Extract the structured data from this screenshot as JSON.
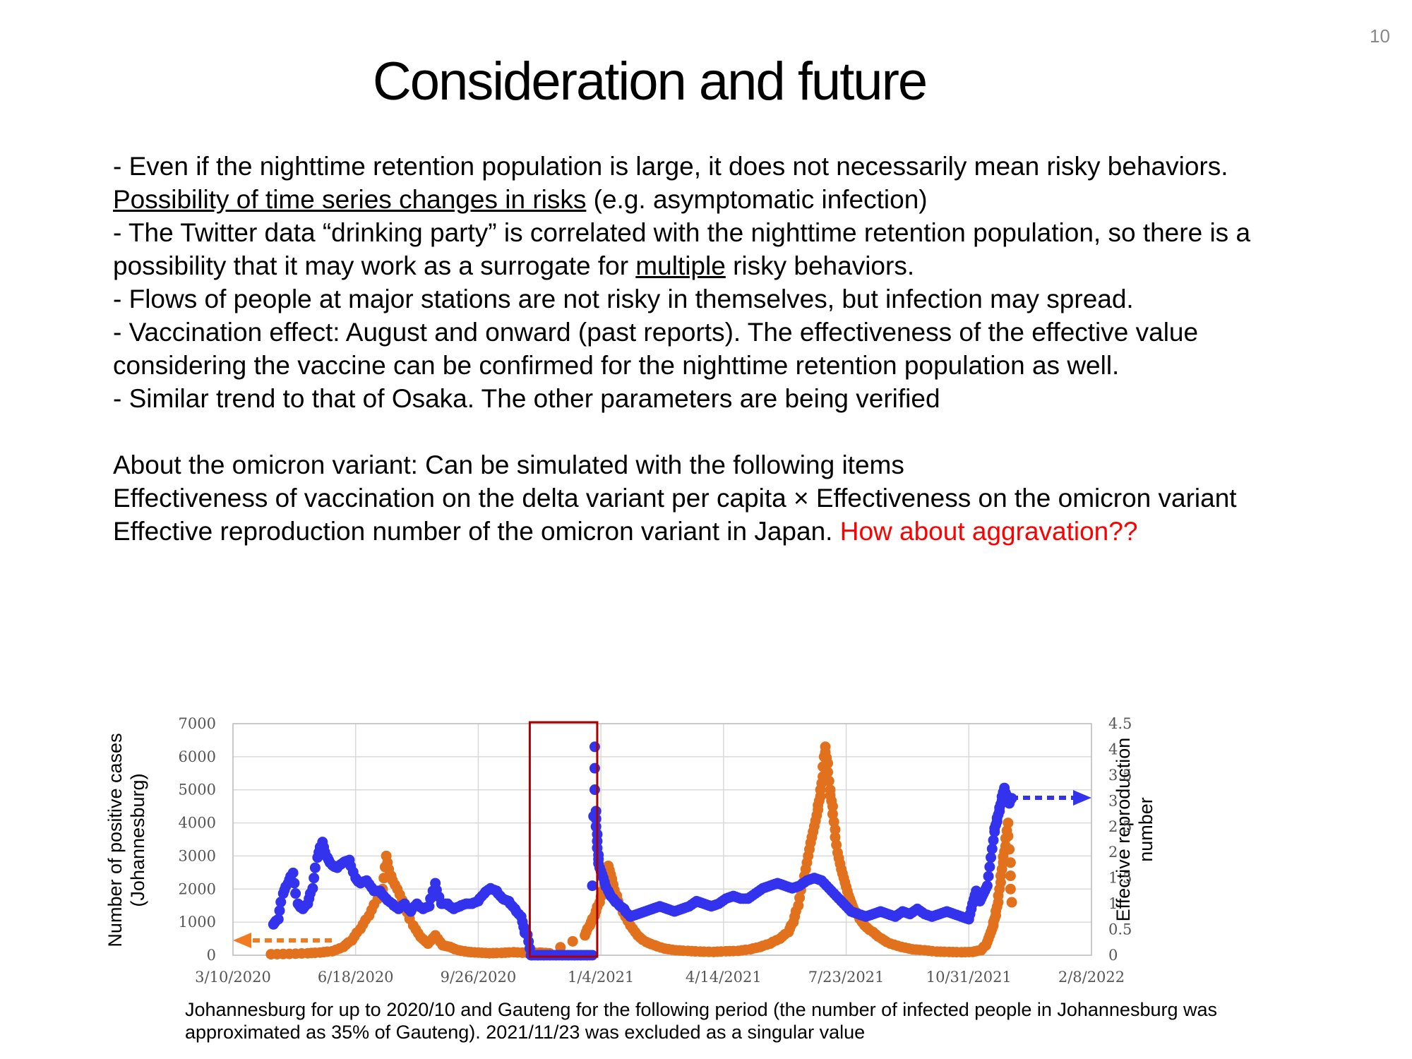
{
  "page_number": "10",
  "title": "Consideration and future",
  "bullets": [
    {
      "parts": [
        {
          "text": "- Even if the nighttime retention population is large, it does not necessarily mean risky behaviors. "
        },
        {
          "text": "Possibility of time series changes in risks",
          "style": "underline"
        },
        {
          "text": " (e.g. asymptomatic infection)"
        }
      ]
    },
    {
      "parts": [
        {
          "text": "- The Twitter data “drinking party” is correlated with the nighttime retention population, so there is a possibility that it may work as a surrogate for "
        },
        {
          "text": "multiple",
          "style": "underline"
        },
        {
          "text": " risky behaviors."
        }
      ]
    },
    {
      "parts": [
        {
          "text": "- Flows of people at major stations are not risky in themselves, but infection may spread."
        }
      ]
    },
    {
      "parts": [
        {
          "text": "- Vaccination effect: August and onward (past reports). The effectiveness of the effective value considering the vaccine can be confirmed for the nighttime retention population as well."
        }
      ]
    },
    {
      "parts": [
        {
          "text": "- Similar trend to that of Osaka. The other parameters are being verified"
        }
      ]
    }
  ],
  "omicron": {
    "heading": "About the omicron variant: Can be simulated with the following items",
    "line1": "Effectiveness of vaccination on the delta variant per capita × Effectiveness on the omicron variant",
    "line2_text": "Effective reproduction number of the omicron variant in Japan. ",
    "line2_red": "How about aggravation??"
  },
  "caption": {
    "line1": "Johannesburg for up to 2020/10 and Gauteng for the following period (the number of infected people in Johannesburg was",
    "line2": "approximated as 35% of Gauteng). 2021/11/23 was excluded as a singular value"
  },
  "chart_data": {
    "type": "scatter",
    "ylabel_left": [
      "Number of positive cases",
      "(Johannesburg)"
    ],
    "ylabel_right": [
      "Effective reproduction",
      "number"
    ],
    "x_ticks": [
      "3/10/2020",
      "6/18/2020",
      "9/26/2020",
      "1/4/2021",
      "4/14/2021",
      "7/23/2021",
      "10/31/2021",
      "2/8/2022"
    ],
    "xlim": [
      "2020-03-10",
      "2022-02-08"
    ],
    "left_ticks": [
      "0",
      "1000",
      "2000",
      "3000",
      "4000",
      "5000",
      "6000",
      "7000"
    ],
    "left_ylim": [
      0,
      7000
    ],
    "right_ticks": [
      "0",
      "0.5",
      "1",
      "1.5",
      "2",
      "2.5",
      "3",
      "3.5",
      "4",
      "4.5"
    ],
    "right_ylim": [
      0,
      4.5
    ],
    "grid": true,
    "colors": {
      "cases": "#e2711d",
      "rt": "#3333ee",
      "highlight": "#aa0000"
    },
    "series": [
      {
        "key": "cases",
        "axis": "left",
        "points": [
          [
            "2020-04-10",
            30
          ],
          [
            "2020-04-25",
            40
          ],
          [
            "2020-05-10",
            60
          ],
          [
            "2020-05-20",
            80
          ],
          [
            "2020-05-30",
            120
          ],
          [
            "2020-06-08",
            250
          ],
          [
            "2020-06-15",
            450
          ],
          [
            "2020-06-22",
            800
          ],
          [
            "2020-06-29",
            1200
          ],
          [
            "2020-07-06",
            1700
          ],
          [
            "2020-07-10",
            2000
          ],
          [
            "2020-07-13",
            3000
          ],
          [
            "2020-07-17",
            2400
          ],
          [
            "2020-07-22",
            2000
          ],
          [
            "2020-07-28",
            1500
          ],
          [
            "2020-08-04",
            900
          ],
          [
            "2020-08-10",
            550
          ],
          [
            "2020-08-16",
            350
          ],
          [
            "2020-08-22",
            600
          ],
          [
            "2020-08-28",
            300
          ],
          [
            "2020-09-03",
            250
          ],
          [
            "2020-09-10",
            150
          ],
          [
            "2020-09-18",
            100
          ],
          [
            "2020-09-26",
            80
          ],
          [
            "2020-10-05",
            60
          ],
          [
            "2020-10-15",
            70
          ],
          [
            "2020-10-25",
            90
          ],
          [
            "2020-11-05",
            70
          ],
          [
            "2020-11-15",
            80
          ],
          [
            "2020-11-23",
            60
          ],
          [
            "2020-12-22",
            600
          ],
          [
            "2020-12-26",
            900
          ],
          [
            "2020-12-30",
            1200
          ],
          [
            "2021-01-03",
            1600
          ],
          [
            "2021-01-07",
            2100
          ],
          [
            "2021-01-10",
            2700
          ],
          [
            "2021-01-13",
            2300
          ],
          [
            "2021-01-17",
            1800
          ],
          [
            "2021-01-22",
            1300
          ],
          [
            "2021-01-28",
            900
          ],
          [
            "2021-02-03",
            600
          ],
          [
            "2021-02-10",
            400
          ],
          [
            "2021-02-17",
            300
          ],
          [
            "2021-02-25",
            200
          ],
          [
            "2021-03-06",
            150
          ],
          [
            "2021-03-16",
            130
          ],
          [
            "2021-03-26",
            110
          ],
          [
            "2021-04-06",
            100
          ],
          [
            "2021-04-16",
            120
          ],
          [
            "2021-04-26",
            130
          ],
          [
            "2021-05-06",
            180
          ],
          [
            "2021-05-14",
            250
          ],
          [
            "2021-05-22",
            350
          ],
          [
            "2021-05-30",
            500
          ],
          [
            "2021-06-06",
            700
          ],
          [
            "2021-06-10",
            1000
          ],
          [
            "2021-06-14",
            1500
          ],
          [
            "2021-06-18",
            2200
          ],
          [
            "2021-06-21",
            2800
          ],
          [
            "2021-06-24",
            3400
          ],
          [
            "2021-06-27",
            3900
          ],
          [
            "2021-06-30",
            4400
          ],
          [
            "2021-07-02",
            4800
          ],
          [
            "2021-07-04",
            5400
          ],
          [
            "2021-07-06",
            6300
          ],
          [
            "2021-07-08",
            5800
          ],
          [
            "2021-07-10",
            5000
          ],
          [
            "2021-07-12",
            4500
          ],
          [
            "2021-07-14",
            3800
          ],
          [
            "2021-07-16",
            3100
          ],
          [
            "2021-07-19",
            2600
          ],
          [
            "2021-07-22",
            2200
          ],
          [
            "2021-07-25",
            1800
          ],
          [
            "2021-07-28",
            1500
          ],
          [
            "2021-08-02",
            1200
          ],
          [
            "2021-08-07",
            900
          ],
          [
            "2021-08-14",
            700
          ],
          [
            "2021-08-21",
            500
          ],
          [
            "2021-08-28",
            350
          ],
          [
            "2021-09-06",
            250
          ],
          [
            "2021-09-15",
            180
          ],
          [
            "2021-09-25",
            150
          ],
          [
            "2021-10-05",
            110
          ],
          [
            "2021-10-15",
            100
          ],
          [
            "2021-10-25",
            90
          ],
          [
            "2021-11-03",
            100
          ],
          [
            "2021-11-10",
            150
          ],
          [
            "2021-11-14",
            300
          ],
          [
            "2021-11-17",
            600
          ],
          [
            "2021-11-20",
            900
          ],
          [
            "2021-11-22",
            1200
          ],
          [
            "2021-11-24",
            1600
          ],
          [
            "2021-11-26",
            2200
          ],
          [
            "2021-11-28",
            2800
          ],
          [
            "2021-11-30",
            3300
          ],
          [
            "2021-12-02",
            4000
          ],
          [
            "2021-12-04",
            2800
          ],
          [
            "2021-12-05",
            1600
          ]
        ]
      },
      {
        "key": "rt",
        "axis": "right",
        "points": [
          [
            "2020-04-12",
            0.6
          ],
          [
            "2020-04-16",
            0.7
          ],
          [
            "2020-04-20",
            1.2
          ],
          [
            "2020-04-24",
            1.4
          ],
          [
            "2020-04-28",
            1.6
          ],
          [
            "2020-05-02",
            1.0
          ],
          [
            "2020-05-06",
            0.9
          ],
          [
            "2020-05-10",
            1.0
          ],
          [
            "2020-05-14",
            1.3
          ],
          [
            "2020-05-18",
            1.9
          ],
          [
            "2020-05-22",
            2.2
          ],
          [
            "2020-05-26",
            1.9
          ],
          [
            "2020-05-30",
            1.75
          ],
          [
            "2020-06-03",
            1.7
          ],
          [
            "2020-06-08",
            1.8
          ],
          [
            "2020-06-13",
            1.85
          ],
          [
            "2020-06-18",
            1.5
          ],
          [
            "2020-06-22",
            1.4
          ],
          [
            "2020-06-27",
            1.45
          ],
          [
            "2020-07-03",
            1.25
          ],
          [
            "2020-07-08",
            1.25
          ],
          [
            "2020-07-13",
            1.1
          ],
          [
            "2020-07-18",
            1.0
          ],
          [
            "2020-07-23",
            0.9
          ],
          [
            "2020-07-28",
            1.0
          ],
          [
            "2020-08-02",
            0.85
          ],
          [
            "2020-08-07",
            1.0
          ],
          [
            "2020-08-12",
            0.9
          ],
          [
            "2020-08-17",
            0.95
          ],
          [
            "2020-08-22",
            1.4
          ],
          [
            "2020-08-27",
            1.0
          ],
          [
            "2020-09-01",
            1.0
          ],
          [
            "2020-09-06",
            0.9
          ],
          [
            "2020-09-11",
            0.95
          ],
          [
            "2020-09-16",
            1.0
          ],
          [
            "2020-09-21",
            1.0
          ],
          [
            "2020-09-26",
            1.05
          ],
          [
            "2020-10-01",
            1.2
          ],
          [
            "2020-10-06",
            1.3
          ],
          [
            "2020-10-11",
            1.25
          ],
          [
            "2020-10-16",
            1.1
          ],
          [
            "2020-10-21",
            1.05
          ],
          [
            "2020-10-26",
            0.9
          ],
          [
            "2020-10-31",
            0.75
          ],
          [
            "2020-11-03",
            0.45
          ],
          [
            "2020-11-05",
            0.4
          ],
          [
            "2020-11-08",
            0.0
          ],
          [
            "2020-11-13",
            0.0
          ],
          [
            "2020-11-18",
            0.0
          ],
          [
            "2020-11-23",
            0.0
          ],
          [
            "2020-11-28",
            0.0
          ],
          [
            "2020-12-03",
            0.0
          ],
          [
            "2020-12-08",
            0.0
          ],
          [
            "2020-12-13",
            0.0
          ],
          [
            "2020-12-18",
            0.0
          ],
          [
            "2020-12-23",
            0.0
          ],
          [
            "2020-12-28",
            0.0
          ],
          [
            "2020-12-30",
            4.05
          ],
          [
            "2020-12-31",
            2.8
          ],
          [
            "2021-01-01",
            2.35
          ],
          [
            "2021-01-02",
            1.95
          ],
          [
            "2021-01-03",
            1.7
          ],
          [
            "2021-01-06",
            1.5
          ],
          [
            "2021-01-10",
            1.25
          ],
          [
            "2021-01-14",
            1.1
          ],
          [
            "2021-01-18",
            1.0
          ],
          [
            "2021-01-23",
            0.9
          ],
          [
            "2021-01-28",
            0.75
          ],
          [
            "2021-02-03",
            0.8
          ],
          [
            "2021-02-09",
            0.85
          ],
          [
            "2021-02-15",
            0.9
          ],
          [
            "2021-02-21",
            0.95
          ],
          [
            "2021-02-27",
            0.9
          ],
          [
            "2021-03-05",
            0.85
          ],
          [
            "2021-03-11",
            0.9
          ],
          [
            "2021-03-17",
            0.95
          ],
          [
            "2021-03-23",
            1.05
          ],
          [
            "2021-03-29",
            1.0
          ],
          [
            "2021-04-04",
            0.95
          ],
          [
            "2021-04-10",
            1.0
          ],
          [
            "2021-04-16",
            1.1
          ],
          [
            "2021-04-22",
            1.15
          ],
          [
            "2021-04-28",
            1.1
          ],
          [
            "2021-05-04",
            1.1
          ],
          [
            "2021-05-10",
            1.2
          ],
          [
            "2021-05-16",
            1.3
          ],
          [
            "2021-05-22",
            1.35
          ],
          [
            "2021-05-28",
            1.4
          ],
          [
            "2021-06-03",
            1.35
          ],
          [
            "2021-06-09",
            1.3
          ],
          [
            "2021-06-15",
            1.35
          ],
          [
            "2021-06-21",
            1.45
          ],
          [
            "2021-06-27",
            1.5
          ],
          [
            "2021-07-03",
            1.45
          ],
          [
            "2021-07-09",
            1.3
          ],
          [
            "2021-07-15",
            1.15
          ],
          [
            "2021-07-21",
            1.0
          ],
          [
            "2021-07-27",
            0.85
          ],
          [
            "2021-08-02",
            0.8
          ],
          [
            "2021-08-08",
            0.75
          ],
          [
            "2021-08-14",
            0.8
          ],
          [
            "2021-08-20",
            0.85
          ],
          [
            "2021-08-26",
            0.8
          ],
          [
            "2021-09-01",
            0.75
          ],
          [
            "2021-09-07",
            0.85
          ],
          [
            "2021-09-13",
            0.8
          ],
          [
            "2021-09-19",
            0.9
          ],
          [
            "2021-09-25",
            0.8
          ],
          [
            "2021-10-01",
            0.75
          ],
          [
            "2021-10-07",
            0.8
          ],
          [
            "2021-10-13",
            0.85
          ],
          [
            "2021-10-19",
            0.8
          ],
          [
            "2021-10-25",
            0.75
          ],
          [
            "2021-10-31",
            0.7
          ],
          [
            "2021-11-03",
            1.0
          ],
          [
            "2021-11-06",
            1.25
          ],
          [
            "2021-11-09",
            1.05
          ],
          [
            "2021-11-12",
            1.2
          ],
          [
            "2021-11-15",
            1.35
          ],
          [
            "2021-11-18",
            1.9
          ],
          [
            "2021-11-21",
            2.4
          ],
          [
            "2021-11-23",
            2.6
          ],
          [
            "2021-11-25",
            2.8
          ],
          [
            "2021-11-27",
            3.0
          ],
          [
            "2021-11-29",
            3.25
          ],
          [
            "2021-12-01",
            3.1
          ],
          [
            "2021-12-03",
            2.95
          ],
          [
            "2021-12-05",
            3.05
          ]
        ]
      }
    ]
  }
}
